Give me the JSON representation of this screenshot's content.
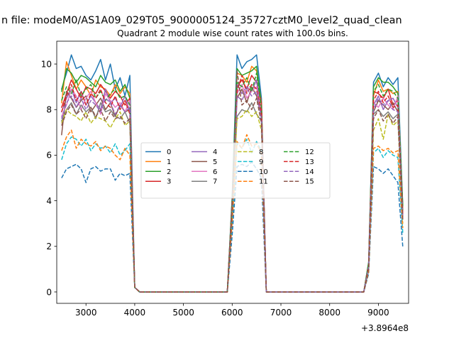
{
  "figure": {
    "suptitle": "n file: modeM0/AS1A09_029T05_9000005124_35727cztM0_level2_quad_clean",
    "title": "Quadrant 2 module wise count rates with 100.0s bins.",
    "offset_label": "+3.8964e8"
  },
  "chart_data": {
    "type": "line",
    "title": "Quadrant 2 module wise count rates with 100.0s bins.",
    "x_offset": 389640000,
    "xlim": [
      2400,
      9620
    ],
    "ylim": [
      -0.5,
      11
    ],
    "x_ticks": [
      3000,
      4000,
      5000,
      6000,
      7000,
      8000,
      9000
    ],
    "y_ticks": [
      0,
      2,
      4,
      6,
      8,
      10
    ],
    "grid": false,
    "legend_position": "center",
    "legend_columns": 4,
    "x": [
      2500,
      2600,
      2700,
      2800,
      2900,
      3000,
      3100,
      3200,
      3300,
      3400,
      3500,
      3600,
      3700,
      3800,
      3900,
      4000,
      4100,
      4200,
      4300,
      4400,
      4500,
      4600,
      4700,
      4800,
      4900,
      5000,
      5100,
      5200,
      5300,
      5400,
      5500,
      5600,
      5700,
      5800,
      5900,
      6000,
      6100,
      6200,
      6300,
      6400,
      6500,
      6600,
      6700,
      6800,
      6900,
      7000,
      7100,
      7200,
      7300,
      7400,
      7500,
      7600,
      7700,
      7800,
      7900,
      8000,
      8100,
      8200,
      8300,
      8400,
      8500,
      8600,
      8700,
      8800,
      8900,
      9000,
      9100,
      9200,
      9300,
      9400,
      9500
    ],
    "series": [
      {
        "name": "0",
        "color": "#1f77b4",
        "dash": "solid",
        "values": [
          8.9,
          9.6,
          10.4,
          9.8,
          9.9,
          9.5,
          9.3,
          9.7,
          10.2,
          9.3,
          10.0,
          8.9,
          9.4,
          8.6,
          9.5,
          0.2,
          0,
          0,
          0,
          0,
          0,
          0,
          0,
          0,
          0,
          0,
          0,
          0,
          0,
          0,
          0,
          0,
          0,
          0,
          0,
          4.2,
          10.4,
          9.8,
          10.1,
          10.2,
          10.4,
          8.5,
          0,
          0,
          0,
          0,
          0,
          0,
          0,
          0,
          0,
          0,
          0,
          0,
          0,
          0,
          0,
          0,
          0,
          0,
          0,
          0,
          0,
          1.3,
          9.2,
          9.6,
          9.0,
          9.4,
          9.1,
          9.4,
          3.8
        ]
      },
      {
        "name": "1",
        "color": "#ff7f0e",
        "dash": "solid",
        "values": [
          8.3,
          10.1,
          9.5,
          8.9,
          9.3,
          9.0,
          8.6,
          9.3,
          9.0,
          8.9,
          8.6,
          9.1,
          8.7,
          9.0,
          8.7,
          0.2,
          0,
          0,
          0,
          0,
          0,
          0,
          0,
          0,
          0,
          0,
          0,
          0,
          0,
          0,
          0,
          0,
          0,
          0,
          0,
          4.0,
          9.6,
          9.5,
          9.2,
          9.9,
          9.7,
          8.3,
          0,
          0,
          0,
          0,
          0,
          0,
          0,
          0,
          0,
          0,
          0,
          0,
          0,
          0,
          0,
          0,
          0,
          0,
          0,
          0,
          0,
          1.2,
          8.6,
          9.3,
          8.8,
          8.9,
          8.7,
          8.8,
          3.6
        ]
      },
      {
        "name": "2",
        "color": "#2ca02c",
        "dash": "solid",
        "values": [
          8.8,
          9.8,
          9.6,
          9.2,
          9.5,
          9.4,
          9.2,
          9.0,
          9.5,
          9.2,
          9.1,
          9.3,
          8.8,
          9.1,
          8.5,
          0.2,
          0,
          0,
          0,
          0,
          0,
          0,
          0,
          0,
          0,
          0,
          0,
          0,
          0,
          0,
          0,
          0,
          0,
          0,
          0,
          4.1,
          9.8,
          9.5,
          9.6,
          9.7,
          9.9,
          8.2,
          0,
          0,
          0,
          0,
          0,
          0,
          0,
          0,
          0,
          0,
          0,
          0,
          0,
          0,
          0,
          0,
          0,
          0,
          0,
          0,
          0,
          1.3,
          9.0,
          9.4,
          9.2,
          9.2,
          9.0,
          8.7,
          3.8
        ]
      },
      {
        "name": "3",
        "color": "#d62728",
        "dash": "solid",
        "values": [
          8.1,
          8.7,
          9.3,
          8.9,
          8.5,
          9.0,
          8.9,
          8.7,
          9.1,
          8.8,
          8.5,
          8.8,
          8.6,
          8.2,
          8.5,
          0.2,
          0,
          0,
          0,
          0,
          0,
          0,
          0,
          0,
          0,
          0,
          0,
          0,
          0,
          0,
          0,
          0,
          0,
          0,
          0,
          4.0,
          9.0,
          9.3,
          8.9,
          9.5,
          9.2,
          8.3,
          0,
          0,
          0,
          0,
          0,
          0,
          0,
          0,
          0,
          0,
          0,
          0,
          0,
          0,
          0,
          0,
          0,
          0,
          0,
          0,
          0,
          1.2,
          8.8,
          8.7,
          8.5,
          8.9,
          8.2,
          8.4,
          3.5
        ]
      },
      {
        "name": "4",
        "color": "#9467bd",
        "dash": "solid",
        "values": [
          7.9,
          8.5,
          8.9,
          8.3,
          8.8,
          8.2,
          8.6,
          8.3,
          8.0,
          8.9,
          8.3,
          8.5,
          8.1,
          8.6,
          7.9,
          0.2,
          0,
          0,
          0,
          0,
          0,
          0,
          0,
          0,
          0,
          0,
          0,
          0,
          0,
          0,
          0,
          0,
          0,
          0,
          0,
          3.9,
          9.1,
          8.7,
          9.0,
          8.8,
          9.3,
          7.8,
          0,
          0,
          0,
          0,
          0,
          0,
          0,
          0,
          0,
          0,
          0,
          0,
          0,
          0,
          0,
          0,
          0,
          0,
          0,
          0,
          0,
          1.1,
          8.2,
          8.6,
          8.0,
          8.4,
          8.5,
          8.1,
          3.4
        ]
      },
      {
        "name": "5",
        "color": "#8c564b",
        "dash": "solid",
        "values": [
          6.9,
          8.8,
          8.5,
          8.1,
          8.4,
          8.6,
          7.9,
          8.2,
          8.5,
          8.0,
          8.3,
          7.7,
          8.2,
          7.9,
          8.0,
          0.2,
          0,
          0,
          0,
          0,
          0,
          0,
          0,
          0,
          0,
          0,
          0,
          0,
          0,
          0,
          0,
          0,
          0,
          0,
          0,
          3.8,
          8.5,
          8.9,
          8.3,
          9.0,
          8.6,
          7.7,
          0,
          0,
          0,
          0,
          0,
          0,
          0,
          0,
          0,
          0,
          0,
          0,
          0,
          0,
          0,
          0,
          0,
          0,
          0,
          0,
          0,
          1.1,
          7.9,
          8.4,
          8.2,
          8.0,
          8.3,
          7.9,
          3.3
        ]
      },
      {
        "name": "6",
        "color": "#e377c2",
        "dash": "solid",
        "values": [
          7.7,
          8.2,
          8.9,
          8.6,
          8.0,
          8.5,
          8.8,
          8.3,
          7.8,
          8.7,
          8.4,
          8.1,
          8.3,
          7.9,
          8.4,
          0.2,
          0,
          0,
          0,
          0,
          0,
          0,
          0,
          0,
          0,
          0,
          0,
          0,
          0,
          0,
          0,
          0,
          0,
          0,
          0,
          3.8,
          8.7,
          9.1,
          8.5,
          8.8,
          9.0,
          7.9,
          0,
          0,
          0,
          0,
          0,
          0,
          0,
          0,
          0,
          0,
          0,
          0,
          0,
          0,
          0,
          0,
          0,
          0,
          0,
          0,
          0,
          1.1,
          8.3,
          8.1,
          8.5,
          8.2,
          8.0,
          8.6,
          3.4
        ]
      },
      {
        "name": "7",
        "color": "#7f7f7f",
        "dash": "solid",
        "values": [
          7.5,
          8.0,
          8.3,
          7.8,
          8.2,
          7.9,
          8.1,
          7.6,
          8.3,
          7.9,
          8.0,
          7.7,
          7.6,
          7.9,
          7.4,
          0.2,
          0,
          0,
          0,
          0,
          0,
          0,
          0,
          0,
          0,
          0,
          0,
          0,
          0,
          0,
          0,
          0,
          0,
          0,
          0,
          3.7,
          7.7,
          8.0,
          7.9,
          8.3,
          7.8,
          7.5,
          0,
          0,
          0,
          0,
          0,
          0,
          0,
          0,
          0,
          0,
          0,
          0,
          0,
          0,
          0,
          0,
          0,
          0,
          0,
          0,
          0,
          1.0,
          7.8,
          8.0,
          7.7,
          7.9,
          7.6,
          7.8,
          3.2
        ]
      },
      {
        "name": "8",
        "color": "#bcbd22",
        "dash": "dashed",
        "values": [
          7.4,
          8.0,
          7.8,
          7.7,
          7.5,
          7.9,
          7.4,
          7.7,
          7.6,
          7.5,
          7.2,
          7.6,
          7.9,
          7.3,
          7.5,
          0.2,
          0,
          0,
          0,
          0,
          0,
          0,
          0,
          0,
          0,
          0,
          0,
          0,
          0,
          0,
          0,
          0,
          0,
          0,
          0,
          3.6,
          7.6,
          7.7,
          8.0,
          7.7,
          7.9,
          7.1,
          0,
          0,
          0,
          0,
          0,
          0,
          0,
          0,
          0,
          0,
          0,
          0,
          0,
          0,
          0,
          0,
          0,
          0,
          0,
          0,
          0,
          1.0,
          7.1,
          7.6,
          6.7,
          7.8,
          7.3,
          7.5,
          3.0
        ]
      },
      {
        "name": "9",
        "color": "#17becf",
        "dash": "dashed",
        "values": [
          5.8,
          6.5,
          6.8,
          6.7,
          6.4,
          6.7,
          6.2,
          6.5,
          6.3,
          6.4,
          6.1,
          6.5,
          6.0,
          6.2,
          6.5,
          0.2,
          0,
          0,
          0,
          0,
          0,
          0,
          0,
          0,
          0,
          0,
          0,
          0,
          0,
          0,
          0,
          0,
          0,
          0,
          0,
          3.0,
          6.5,
          6.3,
          6.7,
          6.1,
          6.6,
          6.2,
          0,
          0,
          0,
          0,
          0,
          0,
          0,
          0,
          0,
          0,
          0,
          0,
          0,
          0,
          0,
          0,
          0,
          0,
          0,
          0,
          0,
          0.9,
          6.1,
          6.3,
          5.9,
          6.2,
          6.0,
          5.9,
          2.6
        ]
      },
      {
        "name": "10",
        "color": "#1f77b4",
        "dash": "dashed",
        "values": [
          5.0,
          5.4,
          5.5,
          5.6,
          5.4,
          4.8,
          5.4,
          5.5,
          5.3,
          5.4,
          5.4,
          4.9,
          5.2,
          5.1,
          5.2,
          0.2,
          0,
          0,
          0,
          0,
          0,
          0,
          0,
          0,
          0,
          0,
          0,
          0,
          0,
          0,
          0,
          0,
          0,
          0,
          0,
          2.5,
          5.5,
          5.6,
          5.5,
          5.7,
          5.4,
          5.0,
          0,
          0,
          0,
          0,
          0,
          0,
          0,
          0,
          0,
          0,
          0,
          0,
          0,
          0,
          0,
          0,
          0,
          0,
          0,
          0,
          0,
          0.8,
          5.5,
          5.4,
          5.2,
          5.4,
          5.1,
          4.8,
          2.0
        ]
      },
      {
        "name": "11",
        "color": "#ff7f0e",
        "dash": "dashed",
        "values": [
          6.2,
          6.8,
          7.1,
          6.3,
          6.7,
          6.5,
          6.4,
          6.6,
          6.2,
          6.4,
          6.3,
          6.0,
          5.8,
          6.3,
          6.0,
          0.2,
          0,
          0,
          0,
          0,
          0,
          0,
          0,
          0,
          0,
          0,
          0,
          0,
          0,
          0,
          0,
          0,
          0,
          0,
          0,
          3.1,
          6.6,
          6.3,
          6.9,
          6.4,
          6.5,
          6.1,
          0,
          0,
          0,
          0,
          0,
          0,
          0,
          0,
          0,
          0,
          0,
          0,
          0,
          0,
          0,
          0,
          0,
          0,
          0,
          0,
          0,
          0.9,
          6.3,
          6.4,
          6.2,
          6.3,
          6.1,
          6.2,
          2.8
        ]
      },
      {
        "name": "12",
        "color": "#2ca02c",
        "dash": "dashed",
        "values": [
          8.4,
          9.0,
          8.7,
          9.3,
          8.6,
          8.9,
          9.1,
          8.5,
          8.8,
          8.4,
          8.7,
          8.9,
          8.5,
          8.6,
          8.2,
          0.2,
          0,
          0,
          0,
          0,
          0,
          0,
          0,
          0,
          0,
          0,
          0,
          0,
          0,
          0,
          0,
          0,
          0,
          0,
          0,
          4.0,
          9.2,
          9.0,
          9.4,
          8.8,
          9.6,
          8.1,
          0,
          0,
          0,
          0,
          0,
          0,
          0,
          0,
          0,
          0,
          0,
          0,
          0,
          0,
          0,
          0,
          0,
          0,
          0,
          0,
          0,
          1.2,
          8.8,
          9.1,
          8.6,
          8.9,
          8.8,
          8.5,
          3.6
        ]
      },
      {
        "name": "13",
        "color": "#d62728",
        "dash": "dashed",
        "values": [
          7.9,
          8.6,
          9.1,
          8.4,
          8.8,
          8.2,
          8.7,
          8.5,
          8.9,
          8.3,
          8.1,
          8.6,
          8.0,
          8.4,
          7.8,
          0.2,
          0,
          0,
          0,
          0,
          0,
          0,
          0,
          0,
          0,
          0,
          0,
          0,
          0,
          0,
          0,
          0,
          0,
          0,
          0,
          3.8,
          8.8,
          9.5,
          8.7,
          9.1,
          8.9,
          7.9,
          0,
          0,
          0,
          0,
          0,
          0,
          0,
          0,
          0,
          0,
          0,
          0,
          0,
          0,
          0,
          0,
          0,
          0,
          0,
          0,
          0,
          1.1,
          8.4,
          8.8,
          8.3,
          8.6,
          8.1,
          8.2,
          3.4
        ]
      },
      {
        "name": "14",
        "color": "#9467bd",
        "dash": "dashed",
        "values": [
          7.6,
          8.3,
          8.6,
          8.1,
          8.5,
          8.0,
          8.4,
          8.2,
          7.9,
          8.5,
          8.3,
          7.8,
          8.2,
          7.9,
          8.1,
          0.2,
          0,
          0,
          0,
          0,
          0,
          0,
          0,
          0,
          0,
          0,
          0,
          0,
          0,
          0,
          0,
          0,
          0,
          0,
          0,
          3.7,
          8.6,
          8.4,
          8.9,
          8.6,
          8.8,
          7.6,
          0,
          0,
          0,
          0,
          0,
          0,
          0,
          0,
          0,
          0,
          0,
          0,
          0,
          0,
          0,
          0,
          0,
          0,
          0,
          0,
          0,
          1.1,
          8.0,
          8.5,
          8.2,
          8.4,
          8.0,
          7.9,
          3.2
        ]
      },
      {
        "name": "15",
        "color": "#8c564b",
        "dash": "dashed",
        "values": [
          7.3,
          7.9,
          8.2,
          7.8,
          8.0,
          7.6,
          8.1,
          7.7,
          8.0,
          7.5,
          7.9,
          7.6,
          7.7,
          7.4,
          7.6,
          0.2,
          0,
          0,
          0,
          0,
          0,
          0,
          0,
          0,
          0,
          0,
          0,
          0,
          0,
          0,
          0,
          0,
          0,
          0,
          0,
          3.6,
          9.7,
          8.2,
          8.4,
          8.0,
          8.5,
          7.4,
          0,
          0,
          0,
          0,
          0,
          0,
          0,
          0,
          0,
          0,
          0,
          0,
          0,
          0,
          0,
          0,
          0,
          0,
          0,
          0,
          0,
          1.0,
          7.6,
          8.0,
          7.5,
          7.8,
          7.4,
          7.7,
          3.1
        ]
      }
    ]
  }
}
